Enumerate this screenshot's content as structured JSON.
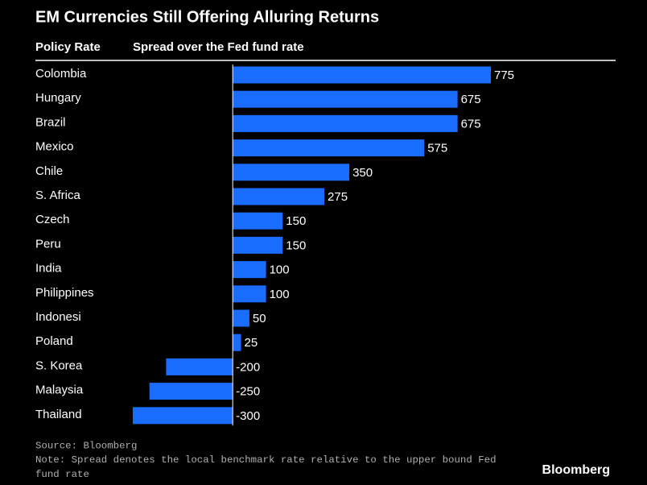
{
  "chart_data": {
    "type": "bar",
    "orientation": "horizontal",
    "title": "EM Currencies Still Offering Alluring Returns",
    "column_headers": [
      "Policy Rate",
      "Spread over the Fed fund rate"
    ],
    "categories": [
      "Colombia",
      "Hungary",
      "Brazil",
      "Mexico",
      "Chile",
      "S. Africa",
      "Czech",
      "Peru",
      "India",
      "Philippines",
      "Indonesi",
      "Poland",
      "S. Korea",
      "Malaysia",
      "Thailand"
    ],
    "values": [
      775,
      675,
      675,
      575,
      350,
      275,
      150,
      150,
      100,
      100,
      50,
      25,
      -200,
      -250,
      -300
    ],
    "color": "#1a6dff",
    "xlim": [
      -300,
      775
    ],
    "source": "Source: Bloomberg",
    "note": "Note: Spread denotes the local benchmark rate relative to the upper bound Fed fund rate",
    "brand": "Bloomberg"
  }
}
